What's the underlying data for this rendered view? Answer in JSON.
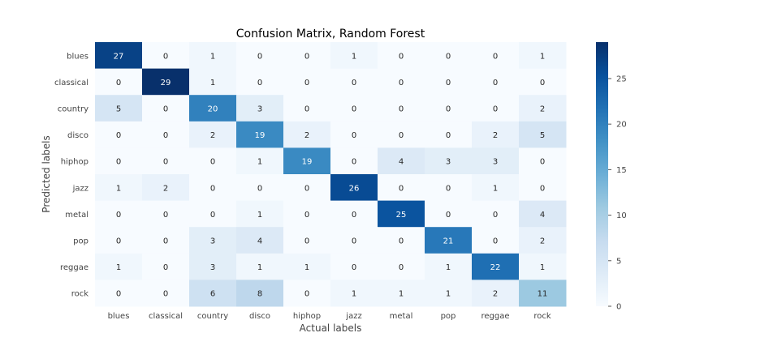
{
  "chart_data": {
    "type": "heatmap",
    "title": "Confusion Matrix, Random Forest",
    "xlabel": "Actual labels",
    "ylabel": "Predicted labels",
    "x_categories": [
      "blues",
      "classical",
      "country",
      "disco",
      "hiphop",
      "jazz",
      "metal",
      "pop",
      "reggae",
      "rock"
    ],
    "y_categories": [
      "blues",
      "classical",
      "country",
      "disco",
      "hiphop",
      "jazz",
      "metal",
      "pop",
      "reggae",
      "rock"
    ],
    "values": [
      [
        27,
        0,
        1,
        0,
        0,
        1,
        0,
        0,
        0,
        1
      ],
      [
        0,
        29,
        1,
        0,
        0,
        0,
        0,
        0,
        0,
        0
      ],
      [
        5,
        0,
        20,
        3,
        0,
        0,
        0,
        0,
        0,
        2
      ],
      [
        0,
        0,
        2,
        19,
        2,
        0,
        0,
        0,
        2,
        5
      ],
      [
        0,
        0,
        0,
        1,
        19,
        0,
        4,
        3,
        3,
        0
      ],
      [
        1,
        2,
        0,
        0,
        0,
        26,
        0,
        0,
        1,
        0
      ],
      [
        0,
        0,
        0,
        1,
        0,
        0,
        25,
        0,
        0,
        4
      ],
      [
        0,
        0,
        3,
        4,
        0,
        0,
        0,
        21,
        0,
        2
      ],
      [
        1,
        0,
        3,
        1,
        1,
        0,
        0,
        1,
        22,
        1
      ],
      [
        0,
        0,
        6,
        8,
        0,
        1,
        1,
        1,
        2,
        11
      ]
    ],
    "colormap": "Blues",
    "color_range": [
      0,
      29
    ],
    "colorbar_ticks": [
      0,
      5,
      10,
      15,
      20,
      25
    ],
    "annotated": true,
    "grid": false
  }
}
